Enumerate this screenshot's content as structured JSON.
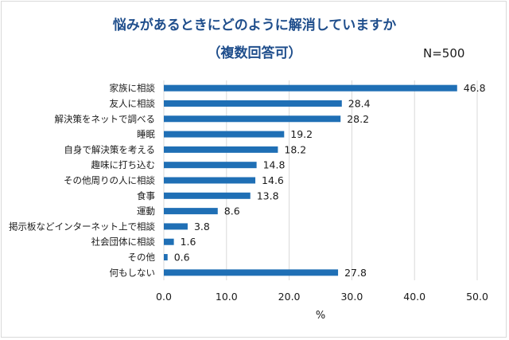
{
  "chart_data": {
    "type": "bar",
    "orientation": "horizontal",
    "title": "悩みがあるときにどのように解消していますか",
    "subtitle": "（複数回答可）",
    "annotation": "N=500",
    "xlabel": "%",
    "ylabel": "",
    "xlim": [
      0,
      50
    ],
    "xticks": [
      "0.0",
      "10.0",
      "20.0",
      "30.0",
      "40.0",
      "50.0"
    ],
    "grid": true,
    "bar_color": "#1f6fb5",
    "categories": [
      "家族に相談",
      "友人に相談",
      "解決策をネットで調べる",
      "睡眠",
      "自身で解決策を考える",
      "趣味に打ち込む",
      "その他周りの人に相談",
      "食事",
      "運動",
      "掲示板などインターネット上で相談",
      "社会団体に相談",
      "その他",
      "何もしない"
    ],
    "values": [
      46.8,
      28.4,
      28.2,
      19.2,
      18.2,
      14.8,
      14.6,
      13.8,
      8.6,
      3.8,
      1.6,
      0.6,
      27.8
    ],
    "value_labels": [
      "46.8",
      "28.4",
      "28.2",
      "19.2",
      "18.2",
      "14.8",
      "14.6",
      "13.8",
      "8.6",
      "3.8",
      "1.6",
      "0.6",
      "27.8"
    ]
  }
}
